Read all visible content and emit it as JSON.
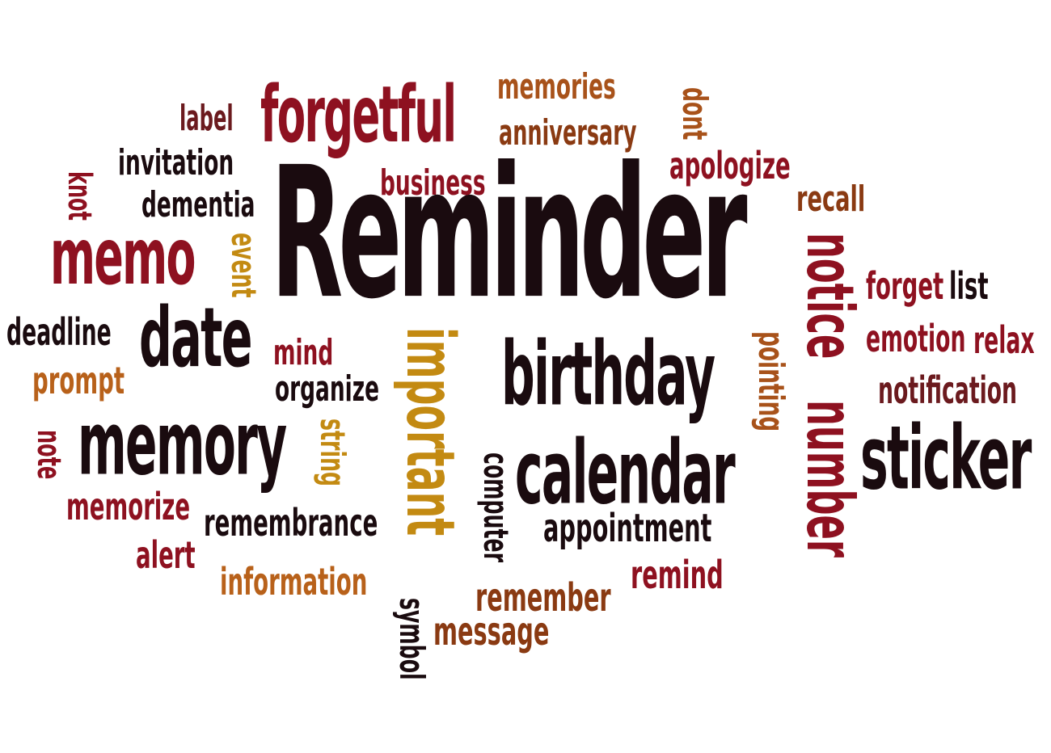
{
  "palette": {
    "dark": "#1a0b0f",
    "crimson": "#8e1120",
    "maroon": "#6b1a1e",
    "brown": "#8a3a12",
    "rust": "#a8521a",
    "gold": "#c38a12",
    "orange": "#b8611a"
  },
  "words": [
    {
      "key": "reminder",
      "text": "Reminder",
      "color": "dark"
    },
    {
      "key": "forgetful",
      "text": "forgetful",
      "color": "crimson"
    },
    {
      "key": "memories",
      "text": "memories",
      "color": "rust"
    },
    {
      "key": "anniversary",
      "text": "anniversary",
      "color": "brown"
    },
    {
      "key": "dont",
      "text": "dont",
      "color": "rust"
    },
    {
      "key": "label",
      "text": "label",
      "color": "maroon"
    },
    {
      "key": "invitation",
      "text": "invitation",
      "color": "dark"
    },
    {
      "key": "knot",
      "text": "knot",
      "color": "crimson"
    },
    {
      "key": "dementia",
      "text": "dementia",
      "color": "dark"
    },
    {
      "key": "business",
      "text": "business",
      "color": "crimson"
    },
    {
      "key": "apologize",
      "text": "apologize",
      "color": "crimson"
    },
    {
      "key": "recall",
      "text": "recall",
      "color": "brown"
    },
    {
      "key": "memo",
      "text": "memo",
      "color": "crimson"
    },
    {
      "key": "event",
      "text": "event",
      "color": "gold"
    },
    {
      "key": "notice",
      "text": "notice",
      "color": "crimson"
    },
    {
      "key": "forget",
      "text": "forget",
      "color": "crimson"
    },
    {
      "key": "list",
      "text": "list",
      "color": "dark"
    },
    {
      "key": "deadline",
      "text": "deadline",
      "color": "dark"
    },
    {
      "key": "date",
      "text": "date",
      "color": "dark"
    },
    {
      "key": "emotion",
      "text": "emotion",
      "color": "crimson"
    },
    {
      "key": "relax",
      "text": "relax",
      "color": "crimson"
    },
    {
      "key": "mind",
      "text": "mind",
      "color": "crimson"
    },
    {
      "key": "important",
      "text": "important",
      "color": "gold"
    },
    {
      "key": "birthday",
      "text": "birthday",
      "color": "dark"
    },
    {
      "key": "pointing",
      "text": "pointing",
      "color": "rust"
    },
    {
      "key": "prompt",
      "text": "prompt",
      "color": "orange"
    },
    {
      "key": "organize",
      "text": "organize",
      "color": "dark"
    },
    {
      "key": "notification",
      "text": "notification",
      "color": "maroon"
    },
    {
      "key": "memory",
      "text": "memory",
      "color": "dark"
    },
    {
      "key": "number",
      "text": "number",
      "color": "crimson"
    },
    {
      "key": "sticker",
      "text": "sticker",
      "color": "dark"
    },
    {
      "key": "note",
      "text": "note",
      "color": "crimson"
    },
    {
      "key": "string",
      "text": "string",
      "color": "gold"
    },
    {
      "key": "calendar",
      "text": "calendar",
      "color": "dark"
    },
    {
      "key": "computer",
      "text": "computer",
      "color": "dark"
    },
    {
      "key": "memorize",
      "text": "memorize",
      "color": "crimson"
    },
    {
      "key": "remembrance",
      "text": "remembrance",
      "color": "dark"
    },
    {
      "key": "appointment",
      "text": "appointment",
      "color": "dark"
    },
    {
      "key": "alert",
      "text": "alert",
      "color": "crimson"
    },
    {
      "key": "remind",
      "text": "remind",
      "color": "crimson"
    },
    {
      "key": "information",
      "text": "information",
      "color": "orange"
    },
    {
      "key": "remember",
      "text": "remember",
      "color": "brown"
    },
    {
      "key": "symbol",
      "text": "symbol",
      "color": "dark"
    },
    {
      "key": "message",
      "text": "message",
      "color": "brown"
    }
  ]
}
